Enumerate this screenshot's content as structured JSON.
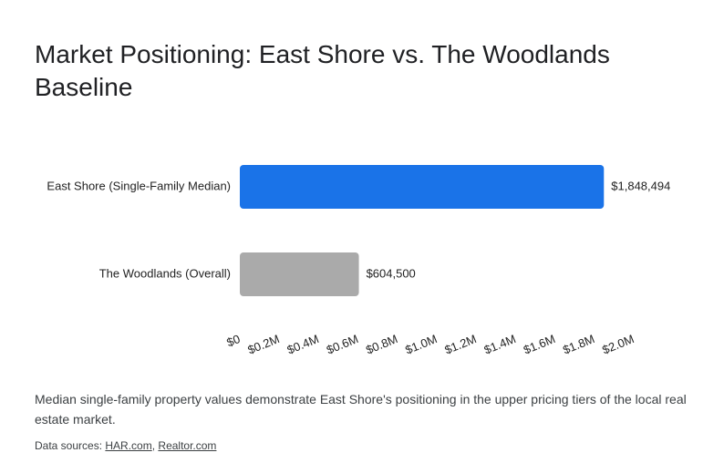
{
  "chart_data": {
    "type": "bar",
    "orientation": "horizontal",
    "title": "Market Positioning: East Shore vs. The Woodlands Baseline",
    "categories": [
      "East Shore (Single-Family Median)",
      "The Woodlands (Overall)"
    ],
    "values": [
      1848494,
      604500
    ],
    "value_labels": [
      "$1,848,494",
      "$604,500"
    ],
    "colors": [
      "#1a73e8",
      "#aaaaaa"
    ],
    "xlim": [
      0,
      2000000
    ],
    "xticks": [
      {
        "value": 0,
        "label": "$0"
      },
      {
        "value": 200000,
        "label": "$0.2M"
      },
      {
        "value": 400000,
        "label": "$0.4M"
      },
      {
        "value": 600000,
        "label": "$0.6M"
      },
      {
        "value": 800000,
        "label": "$0.8M"
      },
      {
        "value": 1000000,
        "label": "$1.0M"
      },
      {
        "value": 1200000,
        "label": "$1.2M"
      },
      {
        "value": 1400000,
        "label": "$1.4M"
      },
      {
        "value": 1600000,
        "label": "$1.6M"
      },
      {
        "value": 1800000,
        "label": "$1.8M"
      },
      {
        "value": 2000000,
        "label": "$2.0M"
      }
    ],
    "grid": false,
    "caption": "Median single-family property values demonstrate East Shore's positioning in the upper pricing tiers of the local real estate market.",
    "sources_label": "Data sources:",
    "sources": [
      "HAR.com",
      "Realtor.com"
    ]
  }
}
